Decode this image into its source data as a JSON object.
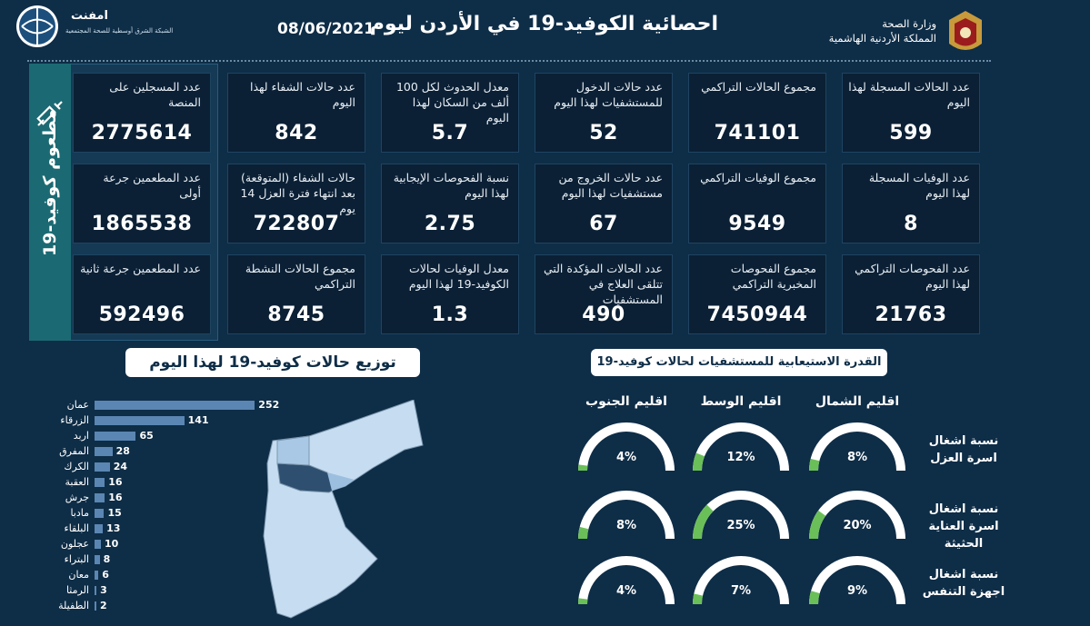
{
  "header": {
    "title": "احصائية الكوفيد-19 في الأردن ليوم",
    "date": "08/06/2021",
    "ministry_line1": "وزارة الصحة",
    "ministry_line2": "المملكة الأردنية الهاشمية",
    "brand_name": "امفنت",
    "brand_sub1": "الشبكة الشرق أوسطية",
    "brand_sub2": "للصحة المجتمعية"
  },
  "vaccine": {
    "side_label": "مطعوم كوفيد-19",
    "tiles": [
      {
        "label": "عدد المسجلين على المنصة",
        "value": "2775614"
      },
      {
        "label": "عدد المطعمين جرعة أولى",
        "value": "1865538"
      },
      {
        "label": "عدد المطعمين جرعة ثانية",
        "value": "592496"
      }
    ]
  },
  "stats": {
    "row1": [
      {
        "label": "عدد الحالات المسجلة لهذا اليوم",
        "value": "599"
      },
      {
        "label": "مجموع الحالات التراكمي",
        "value": "741101"
      },
      {
        "label": "عدد حالات الدخول للمستشفيات لهذا اليوم",
        "value": "52"
      },
      {
        "label": "معدل الحدوث لكل 100 ألف من السكان لهذا اليوم",
        "value": "5.7"
      },
      {
        "label": "عدد حالات الشفاء لهذا اليوم",
        "value": "842"
      }
    ],
    "row2": [
      {
        "label": "عدد الوفيات المسجلة لهذا اليوم",
        "value": "8"
      },
      {
        "label": "مجموع الوفيات التراكمي",
        "value": "9549"
      },
      {
        "label": "عدد حالات الخروج من مستشفيات لهذا اليوم",
        "value": "67"
      },
      {
        "label": "نسبة الفحوصات الإيجابية لهذا اليوم",
        "value": "2.75"
      },
      {
        "label": "حالات الشفاء (المتوقعة) بعد انتهاء فترة العزل 14 يوم",
        "value": "722807"
      }
    ],
    "row3": [
      {
        "label": "عدد الفحوصات التراكمي لهذا اليوم",
        "value": "21763"
      },
      {
        "label": "مجموع الفحوصات المخبرية التراكمي",
        "value": "7450944"
      },
      {
        "label": "عدد الحالات المؤكدة التي تتلقى العلاج في المستشفيات",
        "value": "490"
      },
      {
        "label": "معدل الوفيات لحالات الكوفيد-19 لهذا اليوم",
        "value": "1.3"
      },
      {
        "label": "مجموع الحالات النشطة التراكمي",
        "value": "8745"
      }
    ]
  },
  "distribution": {
    "title": "توزيع حالات كوفيد-19 لهذا اليوم"
  },
  "chart_data": {
    "type": "bar",
    "categories": [
      "عمان",
      "الزرقاء",
      "اربد",
      "المفرق",
      "الكرك",
      "العقبة",
      "جرش",
      "مادبا",
      "البلقاء",
      "عجلون",
      "البتراء",
      "معان",
      "الرمثا",
      "الطفيلة"
    ],
    "values": [
      252,
      141,
      65,
      28,
      24,
      16,
      16,
      15,
      13,
      10,
      8,
      6,
      3,
      2
    ],
    "bar_color": "#5b86b3"
  },
  "capacity": {
    "title": "القدرة الاستيعابية للمستشفيات لحالات كوفيد-19",
    "regions": [
      "اقليم الشمال",
      "اقليم الوسط",
      "اقليم الجنوب"
    ],
    "rows": [
      {
        "label": "نسبة اشغال اسرة العزل",
        "values": [
          8,
          12,
          4
        ]
      },
      {
        "label": "نسبة اشغال اسرة العناية الحثيثة",
        "values": [
          20,
          25,
          8
        ]
      },
      {
        "label": "نسبة اشغال اجهزة التنفس",
        "values": [
          9,
          7,
          4
        ]
      }
    ],
    "fill_color": "#6bbf59",
    "track_color": "#ffffff"
  }
}
